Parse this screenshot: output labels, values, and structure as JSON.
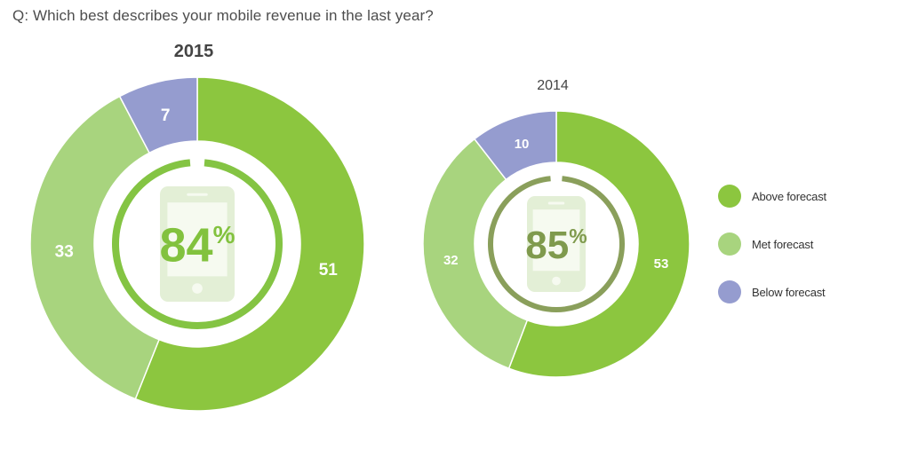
{
  "question": "Q: Which best describes your mobile revenue in the last year?",
  "colors": {
    "above": "#8cc63f",
    "met": "#a8d47e",
    "below": "#959ccf",
    "ring_2015": "#84c443",
    "ring_2014": "#8a9f5b",
    "phone_icon": "#e3efd6",
    "pct_2015": "#82c23e",
    "pct_2014": "#7f9a4d"
  },
  "legend": [
    {
      "label": "Above forecast",
      "color": "#8cc63f"
    },
    {
      "label": "Met forecast",
      "color": "#a8d47e"
    },
    {
      "label": "Below forecast",
      "color": "#959ccf"
    }
  ],
  "chart_data": [
    {
      "type": "pie",
      "title": "2015",
      "categories": [
        "Above forecast",
        "Met forecast",
        "Below forecast"
      ],
      "values": [
        51,
        33,
        7
      ],
      "center_value": "84",
      "center_unit": "%",
      "center_icon": "smartphone-icon",
      "center_ring_fraction": 0.84
    },
    {
      "type": "pie",
      "title": "2014",
      "categories": [
        "Above forecast",
        "Met forecast",
        "Below forecast"
      ],
      "values": [
        53,
        32,
        10
      ],
      "center_value": "85",
      "center_unit": "%",
      "center_icon": "smartphone-icon",
      "center_ring_fraction": 0.85
    }
  ]
}
